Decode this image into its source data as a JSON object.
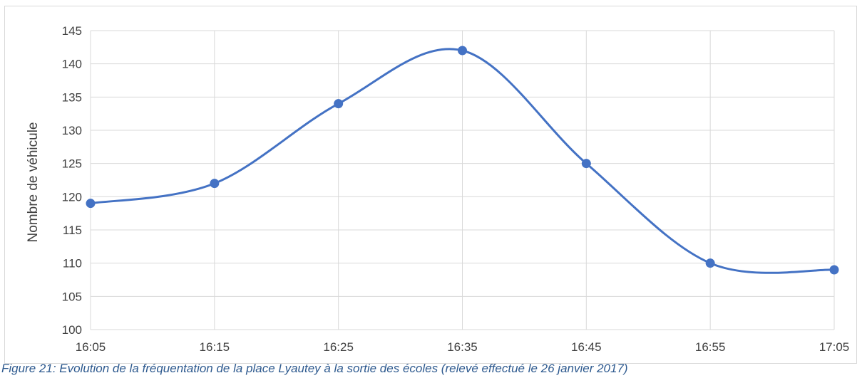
{
  "chart_data": {
    "type": "line",
    "smooth": true,
    "categories": [
      "16:05",
      "16:15",
      "16:25",
      "16:35",
      "16:45",
      "16:55",
      "17:05"
    ],
    "series": [
      {
        "values": [
          119,
          122,
          134,
          142,
          125,
          110,
          109
        ],
        "color": "#4472c4",
        "marker": "circle"
      }
    ],
    "ylabel": "Nombre de véhicule",
    "xlabel": "",
    "ylim": [
      100,
      145
    ],
    "yticks": [
      "100",
      "105",
      "110",
      "115",
      "120",
      "125",
      "130",
      "135",
      "140",
      "145"
    ],
    "grid": true,
    "gridColor": "#d9d9d9",
    "legend": "none"
  },
  "caption": "Figure 21: Evolution de la fréquentation de la place Lyautey à la sortie des écoles (relevé effectué le 26 janvier 2017)"
}
